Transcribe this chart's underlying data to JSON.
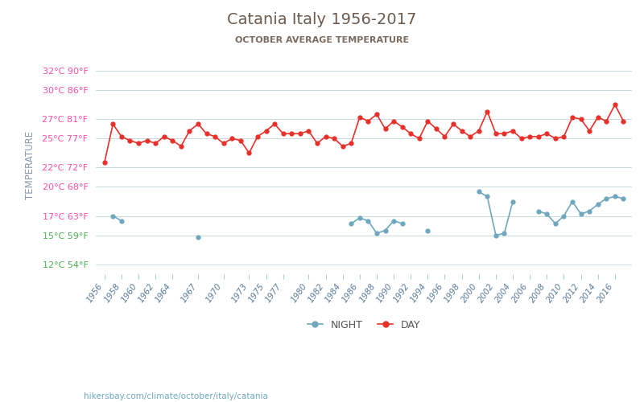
{
  "title": "Catania Italy 1956-2017",
  "subtitle": "OCTOBER AVERAGE TEMPERATURE",
  "ylabel": "TEMPERATURE",
  "ylabel_color": "#8a9aaa",
  "background_color": "#ffffff",
  "grid_color": "#ccd8e0",
  "years": [
    1956,
    1957,
    1958,
    1959,
    1960,
    1961,
    1962,
    1963,
    1964,
    1965,
    1966,
    1967,
    1968,
    1969,
    1970,
    1971,
    1972,
    1973,
    1974,
    1975,
    1976,
    1977,
    1978,
    1979,
    1980,
    1981,
    1982,
    1983,
    1984,
    1985,
    1986,
    1987,
    1988,
    1989,
    1990,
    1991,
    1992,
    1993,
    1994,
    1995,
    1996,
    1997,
    1998,
    1999,
    2000,
    2001,
    2002,
    2003,
    2004,
    2005,
    2006,
    2007,
    2008,
    2009,
    2010,
    2011,
    2012,
    2013,
    2014,
    2015,
    2016,
    2017
  ],
  "day_temps": [
    22.5,
    26.5,
    25.2,
    24.8,
    24.5,
    24.8,
    24.5,
    25.2,
    24.8,
    24.2,
    25.8,
    26.5,
    25.5,
    25.2,
    24.5,
    25.0,
    24.8,
    23.5,
    25.2,
    25.8,
    26.5,
    25.5,
    25.5,
    25.5,
    25.8,
    24.5,
    25.2,
    25.0,
    24.2,
    24.5,
    27.2,
    26.8,
    27.5,
    26.0,
    26.8,
    26.2,
    25.5,
    25.0,
    26.8,
    26.0,
    25.2,
    26.5,
    25.8,
    25.2,
    25.8,
    27.8,
    25.5,
    25.5,
    25.8,
    25.0,
    25.2,
    25.2,
    25.5,
    25.0,
    25.2,
    27.2,
    27.0,
    25.8,
    27.2,
    26.8,
    28.5,
    26.8
  ],
  "night_temps": [
    null,
    17.0,
    16.5,
    null,
    null,
    null,
    null,
    null,
    null,
    null,
    null,
    null,
    null,
    null,
    null,
    null,
    null,
    null,
    null,
    null,
    null,
    null,
    null,
    null,
    null,
    null,
    null,
    null,
    null,
    null,
    null,
    null,
    null,
    null,
    null,
    null,
    null,
    null,
    null,
    null,
    null,
    null,
    null,
    null,
    null,
    null,
    null,
    null,
    null,
    null,
    null,
    null,
    null,
    null,
    null,
    null,
    null,
    null,
    null,
    null,
    null,
    null
  ],
  "night_segments": [
    [
      1957,
      17.0
    ],
    [
      1958,
      16.5
    ],
    [
      1967,
      14.8
    ],
    [
      1985,
      16.2
    ],
    [
      1986,
      16.8
    ],
    [
      1987,
      16.5
    ],
    [
      1988,
      15.2
    ],
    [
      1989,
      15.5
    ],
    [
      1990,
      16.5
    ],
    [
      1991,
      16.2
    ],
    [
      1994,
      15.5
    ],
    [
      2000,
      19.5
    ],
    [
      2001,
      19.0
    ],
    [
      2002,
      15.0
    ],
    [
      2003,
      15.2
    ],
    [
      2004,
      18.5
    ],
    [
      2007,
      17.5
    ],
    [
      2008,
      17.2
    ],
    [
      2009,
      16.2
    ],
    [
      2010,
      17.0
    ],
    [
      2011,
      18.5
    ],
    [
      2012,
      17.2
    ],
    [
      2013,
      17.5
    ],
    [
      2014,
      18.2
    ],
    [
      2015,
      18.8
    ],
    [
      2016,
      19.0
    ],
    [
      2017,
      18.8
    ]
  ],
  "night_groups": [
    [
      1957,
      1958
    ],
    [
      1967
    ],
    [
      1985,
      1986,
      1987,
      1988,
      1989,
      1990,
      1991
    ],
    [
      1994
    ],
    [
      2000,
      2001,
      2002,
      2003,
      2004
    ],
    [
      2007,
      2008,
      2009,
      2010,
      2011,
      2012,
      2013,
      2014,
      2015,
      2016,
      2017
    ]
  ],
  "day_color": "#e8302a",
  "night_color": "#6fa8be",
  "marker_size": 3.5,
  "yticks_celsius": [
    12,
    15,
    17,
    20,
    22,
    25,
    27,
    30,
    32
  ],
  "yticks_fahrenheit": [
    54,
    59,
    63,
    68,
    72,
    77,
    81,
    86,
    90
  ],
  "ytick_colors": [
    "#4caf50",
    "#4caf50",
    "#ff4da6",
    "#ff4da6",
    "#ff4da6",
    "#ff4da6",
    "#ff4da6",
    "#ff4da6",
    "#ff4da6"
  ],
  "ylim": [
    11,
    33.5
  ],
  "xtick_years": [
    1956,
    1958,
    1960,
    1962,
    1964,
    1967,
    1970,
    1973,
    1975,
    1977,
    1980,
    1982,
    1984,
    1986,
    1988,
    1990,
    1992,
    1994,
    1996,
    1998,
    2000,
    2002,
    2004,
    2006,
    2008,
    2010,
    2012,
    2014,
    2016
  ],
  "footer_text": "hikersbay.com/climate/october/italy/catania",
  "footer_color": "#6fa8be",
  "title_color": "#6b5a4e",
  "subtitle_color": "#7a6a60"
}
